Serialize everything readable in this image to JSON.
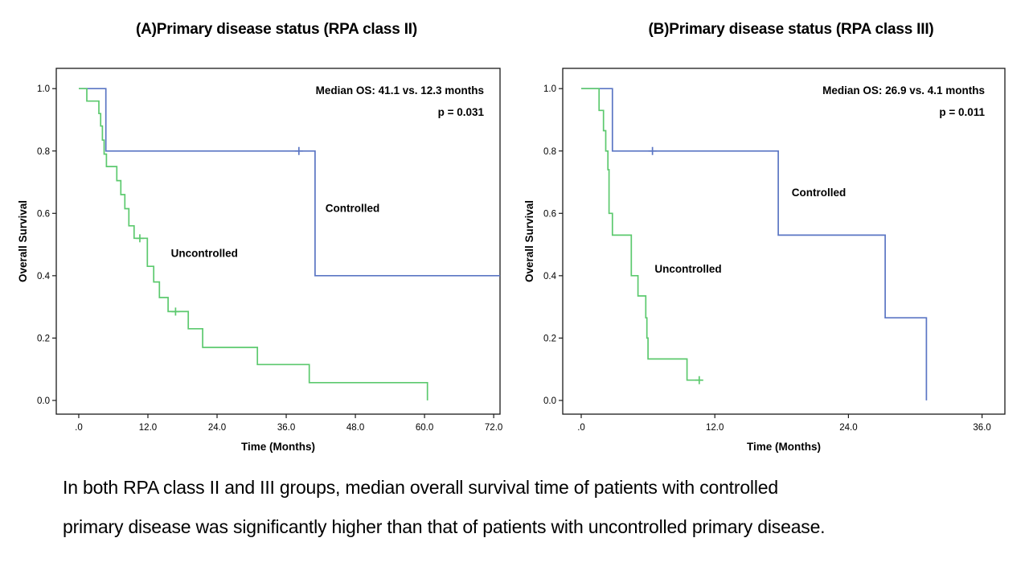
{
  "figure": {
    "caption_line1": "In both RPA class II and III groups, median overall survival time of patients with controlled",
    "caption_line2": "primary disease was significantly higher than that of patients with uncontrolled primary disease."
  },
  "colors": {
    "controlled": "#5b76c4",
    "uncontrolled": "#5cc96e",
    "axis": "#1a1a1a",
    "text": "#000000"
  },
  "chart_data": [
    {
      "type": "line",
      "subtype": "kaplan-meier-step",
      "title": "(A)Primary disease status (RPA class II)",
      "xlabel": "Time (Months)",
      "ylabel": "Overall Survival",
      "xlim": [
        -3.9,
        73.1
      ],
      "ylim": [
        -0.044,
        1.065
      ],
      "xticks": [
        0,
        12,
        24,
        36,
        48,
        60,
        72
      ],
      "xtick_labels": [
        ".0",
        "12.0",
        "24.0",
        "36.0",
        "48.0",
        "60.0",
        "72.0"
      ],
      "yticks": [
        0,
        0.2,
        0.4,
        0.6,
        0.8,
        1.0
      ],
      "ytick_labels": [
        "0.0",
        "0.2",
        "0.4",
        "0.6",
        "0.8",
        "1.0"
      ],
      "grid": false,
      "legend_position": "inline-labels",
      "annotation": {
        "median_os": "Median OS: 41.1 vs. 12.3 months",
        "p_value": "p = 0.031"
      },
      "series": [
        {
          "name": "Controlled",
          "label": "Controlled",
          "color_key": "controlled",
          "label_x": 42.8,
          "label_y": 0.605,
          "points": [
            [
              0,
              1.0
            ],
            [
              4.7,
              0.8
            ],
            [
              41.0,
              0.4
            ],
            [
              73.1,
              0.4
            ]
          ],
          "censors": [
            [
              38.2,
              0.8
            ]
          ]
        },
        {
          "name": "Uncontrolled",
          "label": "Uncontrolled",
          "color_key": "uncontrolled",
          "label_x": 16.0,
          "label_y": 0.46,
          "points": [
            [
              0,
              1.0
            ],
            [
              1.4,
              0.96
            ],
            [
              3.5,
              0.92
            ],
            [
              3.8,
              0.88
            ],
            [
              4.1,
              0.835
            ],
            [
              4.4,
              0.79
            ],
            [
              4.8,
              0.75
            ],
            [
              6.6,
              0.705
            ],
            [
              7.3,
              0.66
            ],
            [
              8.0,
              0.615
            ],
            [
              8.7,
              0.56
            ],
            [
              9.6,
              0.52
            ],
            [
              11.9,
              0.43
            ],
            [
              13.0,
              0.38
            ],
            [
              14.0,
              0.33
            ],
            [
              15.5,
              0.285
            ],
            [
              19.0,
              0.23
            ],
            [
              21.5,
              0.17
            ],
            [
              31.0,
              0.115
            ],
            [
              40.0,
              0.057
            ],
            [
              60.5,
              0.0
            ]
          ],
          "censors": [
            [
              10.6,
              0.52
            ],
            [
              16.8,
              0.285
            ]
          ]
        }
      ]
    },
    {
      "type": "line",
      "subtype": "kaplan-meier-step",
      "title": "(B)Primary disease status (RPA class III)",
      "xlabel": "Time (Months)",
      "ylabel": "Overall Survival",
      "xlim": [
        -1.66,
        38.05
      ],
      "ylim": [
        -0.044,
        1.065
      ],
      "xticks": [
        0,
        12,
        24,
        36
      ],
      "xtick_labels": [
        ".0",
        "12.0",
        "24.0",
        "36.0"
      ],
      "yticks": [
        0,
        0.2,
        0.4,
        0.6,
        0.8,
        1.0
      ],
      "ytick_labels": [
        "0.0",
        "0.2",
        "0.4",
        "0.6",
        "0.8",
        "1.0"
      ],
      "grid": false,
      "legend_position": "inline-labels",
      "annotation": {
        "median_os": "Median OS: 26.9 vs. 4.1 months",
        "p_value": "p = 0.011"
      },
      "series": [
        {
          "name": "Controlled",
          "label": "Controlled",
          "color_key": "controlled",
          "label_x": 18.9,
          "label_y": 0.655,
          "points": [
            [
              0,
              1.0
            ],
            [
              2.8,
              0.8
            ],
            [
              17.7,
              0.53
            ],
            [
              27.3,
              0.265
            ],
            [
              31.0,
              0.0
            ]
          ],
          "censors": [
            [
              6.4,
              0.8
            ]
          ]
        },
        {
          "name": "Uncontrolled",
          "label": "Uncontrolled",
          "color_key": "uncontrolled",
          "label_x": 6.6,
          "label_y": 0.41,
          "points": [
            [
              0,
              1.0
            ],
            [
              1.6,
              0.93
            ],
            [
              2.0,
              0.865
            ],
            [
              2.2,
              0.8
            ],
            [
              2.4,
              0.74
            ],
            [
              2.5,
              0.6
            ],
            [
              2.8,
              0.53
            ],
            [
              4.5,
              0.4
            ],
            [
              5.1,
              0.335
            ],
            [
              5.8,
              0.265
            ],
            [
              5.9,
              0.2
            ],
            [
              6.0,
              0.133
            ],
            [
              9.5,
              0.065
            ],
            [
              10.8,
              0.065
            ]
          ],
          "censors": [
            [
              10.6,
              0.065
            ]
          ]
        }
      ]
    }
  ]
}
